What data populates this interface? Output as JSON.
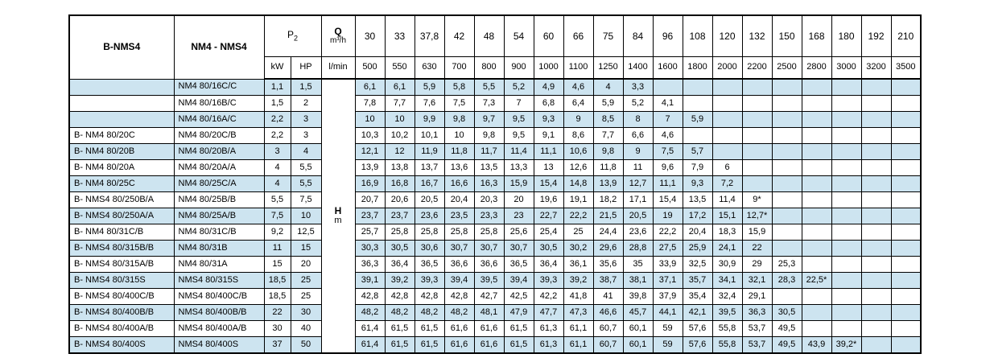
{
  "table": {
    "header": {
      "col1": "B-NMS4",
      "col2": "NM4 - NMS4",
      "p2_base": "P",
      "p2_sub": "2",
      "q_label": "Q",
      "q_unit": "m³/h",
      "kw": "kW",
      "hp": "HP",
      "lmin": "l/min",
      "flow_m3h": [
        "30",
        "33",
        "37,8",
        "42",
        "48",
        "54",
        "60",
        "66",
        "75",
        "84",
        "96",
        "108",
        "120",
        "132",
        "150",
        "168",
        "180",
        "192",
        "210"
      ],
      "flow_lmin": [
        "500",
        "550",
        "630",
        "700",
        "800",
        "900",
        "1000",
        "1100",
        "1250",
        "1400",
        "1600",
        "1800",
        "2000",
        "2200",
        "2500",
        "2800",
        "3000",
        "3200",
        "3500"
      ]
    },
    "h_label": "H",
    "h_unit": "m",
    "colors": {
      "row_alt": "#cde4f0",
      "border": "#000000"
    },
    "rows": [
      {
        "b": "",
        "model": "NM4 80/16C/C",
        "kw": "1,1",
        "hp": "1,5",
        "values": [
          "6,1",
          "6,1",
          "5,9",
          "5,8",
          "5,5",
          "5,2",
          "4,9",
          "4,6",
          "4",
          "3,3",
          "",
          "",
          "",
          "",
          "",
          "",
          "",
          "",
          ""
        ]
      },
      {
        "b": "",
        "model": "NM4 80/16B/C",
        "kw": "1,5",
        "hp": "2",
        "values": [
          "7,8",
          "7,7",
          "7,6",
          "7,5",
          "7,3",
          "7",
          "6,8",
          "6,4",
          "5,9",
          "5,2",
          "4,1",
          "",
          "",
          "",
          "",
          "",
          "",
          "",
          ""
        ]
      },
      {
        "b": "",
        "model": "NM4 80/16A/C",
        "kw": "2,2",
        "hp": "3",
        "values": [
          "10",
          "10",
          "9,9",
          "9,8",
          "9,7",
          "9,5",
          "9,3",
          "9",
          "8,5",
          "8",
          "7",
          "5,9",
          "",
          "",
          "",
          "",
          "",
          "",
          ""
        ]
      },
      {
        "b": "B- NM4 80/20C",
        "model": "NM4 80/20C/B",
        "kw": "2,2",
        "hp": "3",
        "values": [
          "10,3",
          "10,2",
          "10,1",
          "10",
          "9,8",
          "9,5",
          "9,1",
          "8,6",
          "7,7",
          "6,6",
          "4,6",
          "",
          "",
          "",
          "",
          "",
          "",
          "",
          ""
        ]
      },
      {
        "b": "B- NM4 80/20B",
        "model": "NM4 80/20B/A",
        "kw": "3",
        "hp": "4",
        "values": [
          "12,1",
          "12",
          "11,9",
          "11,8",
          "11,7",
          "11,4",
          "11,1",
          "10,6",
          "9,8",
          "9",
          "7,5",
          "5,7",
          "",
          "",
          "",
          "",
          "",
          "",
          ""
        ]
      },
      {
        "b": "B- NM4 80/20A",
        "model": "NM4 80/20A/A",
        "kw": "4",
        "hp": "5,5",
        "values": [
          "13,9",
          "13,8",
          "13,7",
          "13,6",
          "13,5",
          "13,3",
          "13",
          "12,6",
          "11,8",
          "11",
          "9,6",
          "7,9",
          "6",
          "",
          "",
          "",
          "",
          "",
          ""
        ]
      },
      {
        "b": "B- NM4 80/25C",
        "model": "NM4 80/25C/A",
        "kw": "4",
        "hp": "5,5",
        "values": [
          "16,9",
          "16,8",
          "16,7",
          "16,6",
          "16,3",
          "15,9",
          "15,4",
          "14,8",
          "13,9",
          "12,7",
          "11,1",
          "9,3",
          "7,2",
          "",
          "",
          "",
          "",
          "",
          ""
        ]
      },
      {
        "b": "B- NMS4 80/250B/A",
        "model": "NM4 80/25B/B",
        "kw": "5,5",
        "hp": "7,5",
        "values": [
          "20,7",
          "20,6",
          "20,5",
          "20,4",
          "20,3",
          "20",
          "19,6",
          "19,1",
          "18,2",
          "17,1",
          "15,4",
          "13,5",
          "11,4",
          "9*",
          "",
          "",
          "",
          "",
          ""
        ]
      },
      {
        "b": "B- NMS4 80/250A/A",
        "model": "NM4 80/25A/B",
        "kw": "7,5",
        "hp": "10",
        "values": [
          "23,7",
          "23,7",
          "23,6",
          "23,5",
          "23,3",
          "23",
          "22,7",
          "22,2",
          "21,5",
          "20,5",
          "19",
          "17,2",
          "15,1",
          "12,7*",
          "",
          "",
          "",
          "",
          ""
        ]
      },
      {
        "b": "B- NM4 80/31C/B",
        "model": "NM4 80/31C/B",
        "kw": "9,2",
        "hp": "12,5",
        "values": [
          "25,7",
          "25,8",
          "25,8",
          "25,8",
          "25,8",
          "25,6",
          "25,4",
          "25",
          "24,4",
          "23,6",
          "22,2",
          "20,4",
          "18,3",
          "15,9",
          "",
          "",
          "",
          "",
          ""
        ]
      },
      {
        "b": "B- NMS4 80/315B/B",
        "model": "NM4 80/31B",
        "kw": "11",
        "hp": "15",
        "values": [
          "30,3",
          "30,5",
          "30,6",
          "30,7",
          "30,7",
          "30,7",
          "30,5",
          "30,2",
          "29,6",
          "28,8",
          "27,5",
          "25,9",
          "24,1",
          "22",
          "",
          "",
          "",
          "",
          ""
        ]
      },
      {
        "b": "B- NMS4 80/315A/B",
        "model": "NM4 80/31A",
        "kw": "15",
        "hp": "20",
        "values": [
          "36,3",
          "36,4",
          "36,5",
          "36,6",
          "36,6",
          "36,5",
          "36,4",
          "36,1",
          "35,6",
          "35",
          "33,9",
          "32,5",
          "30,9",
          "29",
          "25,3",
          "",
          "",
          "",
          ""
        ]
      },
      {
        "b": "B- NMS4 80/315S",
        "model": "NMS4 80/315S",
        "kw": "18,5",
        "hp": "25",
        "values": [
          "39,1",
          "39,2",
          "39,3",
          "39,4",
          "39,5",
          "39,4",
          "39,3",
          "39,2",
          "38,7",
          "38,1",
          "37,1",
          "35,7",
          "34,1",
          "32,1",
          "28,3",
          "22,5*",
          "",
          "",
          ""
        ]
      },
      {
        "b": "B- NMS4 80/400C/B",
        "model": "NMS4 80/400C/B",
        "kw": "18,5",
        "hp": "25",
        "values": [
          "42,8",
          "42,8",
          "42,8",
          "42,8",
          "42,7",
          "42,5",
          "42,2",
          "41,8",
          "41",
          "39,8",
          "37,9",
          "35,4",
          "32,4",
          "29,1",
          "",
          "",
          "",
          "",
          ""
        ]
      },
      {
        "b": "B- NMS4 80/400B/B",
        "model": "NMS4 80/400B/B",
        "kw": "22",
        "hp": "30",
        "values": [
          "48,2",
          "48,2",
          "48,2",
          "48,2",
          "48,1",
          "47,9",
          "47,7",
          "47,3",
          "46,6",
          "45,7",
          "44,1",
          "42,1",
          "39,5",
          "36,3",
          "30,5",
          "",
          "",
          "",
          ""
        ]
      },
      {
        "b": "B- NMS4 80/400A/B",
        "model": "NMS4 80/400A/B",
        "kw": "30",
        "hp": "40",
        "values": [
          "61,4",
          "61,5",
          "61,5",
          "61,6",
          "61,6",
          "61,5",
          "61,3",
          "61,1",
          "60,7",
          "60,1",
          "59",
          "57,6",
          "55,8",
          "53,7",
          "49,5",
          "",
          "",
          "",
          ""
        ]
      },
      {
        "b": "B- NMS4 80/400S",
        "model": "NMS4 80/400S",
        "kw": "37",
        "hp": "50",
        "values": [
          "61,4",
          "61,5",
          "61,5",
          "61,6",
          "61,6",
          "61,5",
          "61,3",
          "61,1",
          "60,7",
          "60,1",
          "59",
          "57,6",
          "55,8",
          "53,7",
          "49,5",
          "43,9",
          "39,2*",
          "",
          ""
        ]
      }
    ]
  }
}
